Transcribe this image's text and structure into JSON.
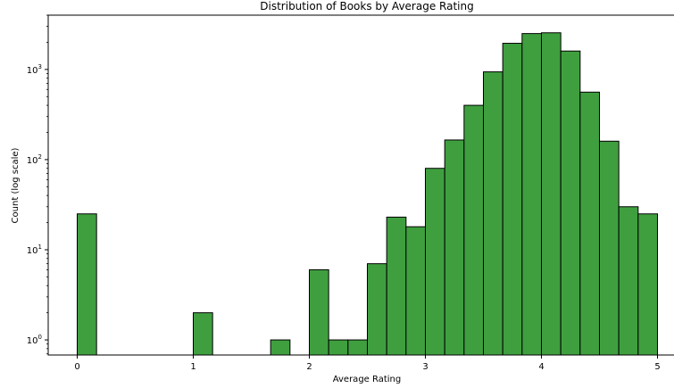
{
  "chart_data": {
    "type": "bar",
    "title": "Distribution of Books by Average Rating",
    "xlabel": "Average Rating",
    "ylabel": "Count (log scale)",
    "yscale": "log",
    "xlim": [
      -0.25,
      5.25
    ],
    "ylim": [
      0.68,
      4000
    ],
    "bar_color": "#3f9f3f",
    "edge_color": "#000000",
    "bin_width": 0.1667,
    "x_ticks": [
      0,
      1,
      2,
      3,
      4,
      5
    ],
    "y_ticks": [
      {
        "value": 1,
        "base": "10",
        "exp": "0"
      },
      {
        "value": 10,
        "base": "10",
        "exp": "1"
      },
      {
        "value": 100,
        "base": "10",
        "exp": "2"
      },
      {
        "value": 1000,
        "base": "10",
        "exp": "3"
      }
    ],
    "bins": [
      {
        "x": 0.0,
        "count": 25
      },
      {
        "x": 1.0,
        "count": 2
      },
      {
        "x": 1.6667,
        "count": 1
      },
      {
        "x": 2.0,
        "count": 6
      },
      {
        "x": 2.1667,
        "count": 1
      },
      {
        "x": 2.3333,
        "count": 1
      },
      {
        "x": 2.5,
        "count": 7
      },
      {
        "x": 2.6667,
        "count": 23
      },
      {
        "x": 2.8333,
        "count": 18
      },
      {
        "x": 3.0,
        "count": 80
      },
      {
        "x": 3.1667,
        "count": 165
      },
      {
        "x": 3.3333,
        "count": 400
      },
      {
        "x": 3.5,
        "count": 940
      },
      {
        "x": 3.6667,
        "count": 1950
      },
      {
        "x": 3.8333,
        "count": 2500
      },
      {
        "x": 4.0,
        "count": 2550
      },
      {
        "x": 4.1667,
        "count": 1600
      },
      {
        "x": 4.3333,
        "count": 560
      },
      {
        "x": 4.5,
        "count": 160
      },
      {
        "x": 4.6667,
        "count": 30
      },
      {
        "x": 4.8333,
        "count": 25
      }
    ]
  }
}
